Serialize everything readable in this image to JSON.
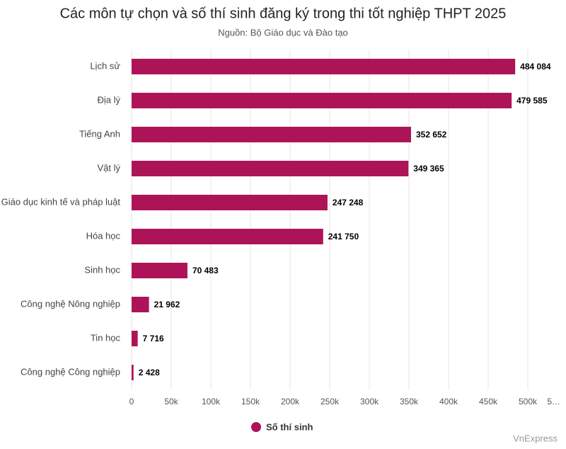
{
  "chart_data": {
    "type": "bar",
    "orientation": "horizontal",
    "title": "Các môn tự chọn và số thí sinh đăng ký trong thi tốt nghiệp THPT 2025",
    "subtitle": "Nguồn: Bộ Giáo dục và Đào tạo",
    "credit": "VnExpress",
    "categories": [
      "Lịch sử",
      "Địa lý",
      "Tiếng Anh",
      "Vật lý",
      "Giáo dục kinh tế và pháp luật",
      "Hóa học",
      "Sinh học",
      "Công nghệ Nông nghiệp",
      "Tin học",
      "Công nghệ Công nghiệp"
    ],
    "series": [
      {
        "name": "Số thí sinh",
        "color": "#ad1457",
        "values": [
          484084,
          479585,
          352652,
          349365,
          247248,
          241750,
          70483,
          21962,
          7716,
          2428
        ],
        "value_labels": [
          "484 084",
          "479 585",
          "352 652",
          "349 365",
          "247 248",
          "241 750",
          "70 483",
          "21 962",
          "7 716",
          "2 428"
        ]
      }
    ],
    "xlim": [
      0,
      550000
    ],
    "xticks": [
      0,
      {
        "value": 50000,
        "label": "50k"
      },
      {
        "value": 100000,
        "label": "100k"
      },
      {
        "value": 150000,
        "label": "150k"
      },
      {
        "value": 200000,
        "label": "200k"
      },
      {
        "value": 250000,
        "label": "250k"
      },
      {
        "value": 300000,
        "label": "300k"
      },
      {
        "value": 350000,
        "label": "350k"
      },
      {
        "value": 400000,
        "label": "400k"
      },
      {
        "value": 450000,
        "label": "450k"
      },
      {
        "value": 500000,
        "label": "500k"
      },
      {
        "value": 550000,
        "label": "5…"
      }
    ],
    "grid": true,
    "legend": "bottom"
  }
}
